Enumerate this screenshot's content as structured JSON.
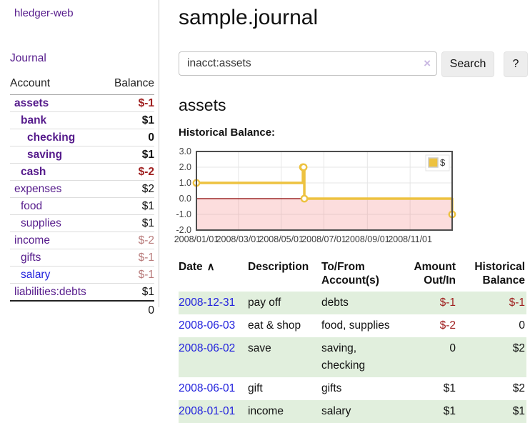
{
  "app": {
    "brand": "hledger-web",
    "nav_journal": "Journal"
  },
  "sidebar": {
    "header": {
      "account": "Account",
      "balance": "Balance"
    },
    "accounts": [
      {
        "name": "assets",
        "indent": 1,
        "bold": true,
        "balance": "$-1",
        "balance_style": "neg-strong"
      },
      {
        "name": "bank",
        "indent": 2,
        "bold": true,
        "balance": "$1",
        "balance_style": "pos"
      },
      {
        "name": "checking",
        "indent": 3,
        "bold": true,
        "balance": "0",
        "balance_style": "pos"
      },
      {
        "name": "saving",
        "indent": 3,
        "bold": true,
        "balance": "$1",
        "balance_style": "pos"
      },
      {
        "name": "cash",
        "indent": 2,
        "bold": true,
        "balance": "$-2",
        "balance_style": "neg-strong"
      },
      {
        "name": "expenses",
        "indent": 1,
        "bold": false,
        "balance": "$2",
        "balance_style": "pos"
      },
      {
        "name": "food",
        "indent": 2,
        "bold": false,
        "balance": "$1",
        "balance_style": "pos"
      },
      {
        "name": "supplies",
        "indent": 2,
        "bold": false,
        "balance": "$1",
        "balance_style": "pos"
      },
      {
        "name": "income",
        "indent": 1,
        "bold": false,
        "balance": "$-2",
        "balance_style": "neg-soft"
      },
      {
        "name": "gifts",
        "indent": 2,
        "bold": false,
        "balance": "$-1",
        "balance_style": "neg-soft"
      },
      {
        "name": "salary",
        "indent": 2,
        "bold": false,
        "balance": "$-1",
        "balance_style": "neg-soft",
        "link_color": "blue"
      },
      {
        "name": "liabilities:debts",
        "indent": 1,
        "bold": false,
        "balance": "$1",
        "balance_style": "pos"
      }
    ],
    "total": "0"
  },
  "header": {
    "title": "sample.journal"
  },
  "search": {
    "value": "inacct:assets",
    "clear_icon": "×",
    "button": "Search",
    "help_button": "?"
  },
  "account_page": {
    "title": "assets",
    "chart_label": "Historical Balance:"
  },
  "chart_data": {
    "type": "line",
    "title": "Historical Balance",
    "step": true,
    "series": [
      {
        "name": "$",
        "color": "#edc240",
        "points": [
          [
            "2008-01-01",
            1
          ],
          [
            "2008-06-01",
            2
          ],
          [
            "2008-06-02",
            2
          ],
          [
            "2008-06-03",
            0
          ],
          [
            "2008-12-31",
            -1
          ]
        ]
      }
    ],
    "xlim": [
      "2008-01-01",
      "2008-12-31"
    ],
    "ylim": [
      -2,
      3
    ],
    "y_ticks": [
      3.0,
      2.0,
      1.0,
      0.0,
      -1.0,
      -2.0
    ],
    "x_ticks": [
      "2008/01/01",
      "2008/03/01",
      "2008/05/01",
      "2008/07/01",
      "2008/09/01",
      "2008/11/01"
    ],
    "legend": {
      "label": "$",
      "position": "top-right"
    },
    "grid": true,
    "gridline_color": "#e6e6e6",
    "border_color": "#4d4d4d",
    "zero_line_color": "#8b0000",
    "negative_fill": "#f27878",
    "negative_fill_opacity": 0.25
  },
  "register": {
    "columns": {
      "date": "Date",
      "description": "Description",
      "accounts": "To/From\nAccount(s)",
      "amount": "Amount\nOut/In",
      "balance": "Historical\nBalance"
    },
    "sort_icon": "∧",
    "rows": [
      {
        "date": "2008-12-31",
        "description": "pay off",
        "accounts": "debts",
        "amount": "$-1",
        "amount_neg": true,
        "balance": "$-1",
        "balance_neg": true
      },
      {
        "date": "2008-06-03",
        "description": "eat & shop",
        "accounts": "food, supplies",
        "amount": "$-2",
        "amount_neg": true,
        "balance": "0",
        "balance_neg": false
      },
      {
        "date": "2008-06-02",
        "description": "save",
        "accounts": "saving, checking",
        "amount": "0",
        "amount_neg": false,
        "balance": "$2",
        "balance_neg": false
      },
      {
        "date": "2008-06-01",
        "description": "gift",
        "accounts": "gifts",
        "amount": "$1",
        "amount_neg": false,
        "balance": "$2",
        "balance_neg": false
      },
      {
        "date": "2008-01-01",
        "description": "income",
        "accounts": "salary",
        "amount": "$1",
        "amount_neg": false,
        "balance": "$1",
        "balance_neg": false
      }
    ]
  }
}
